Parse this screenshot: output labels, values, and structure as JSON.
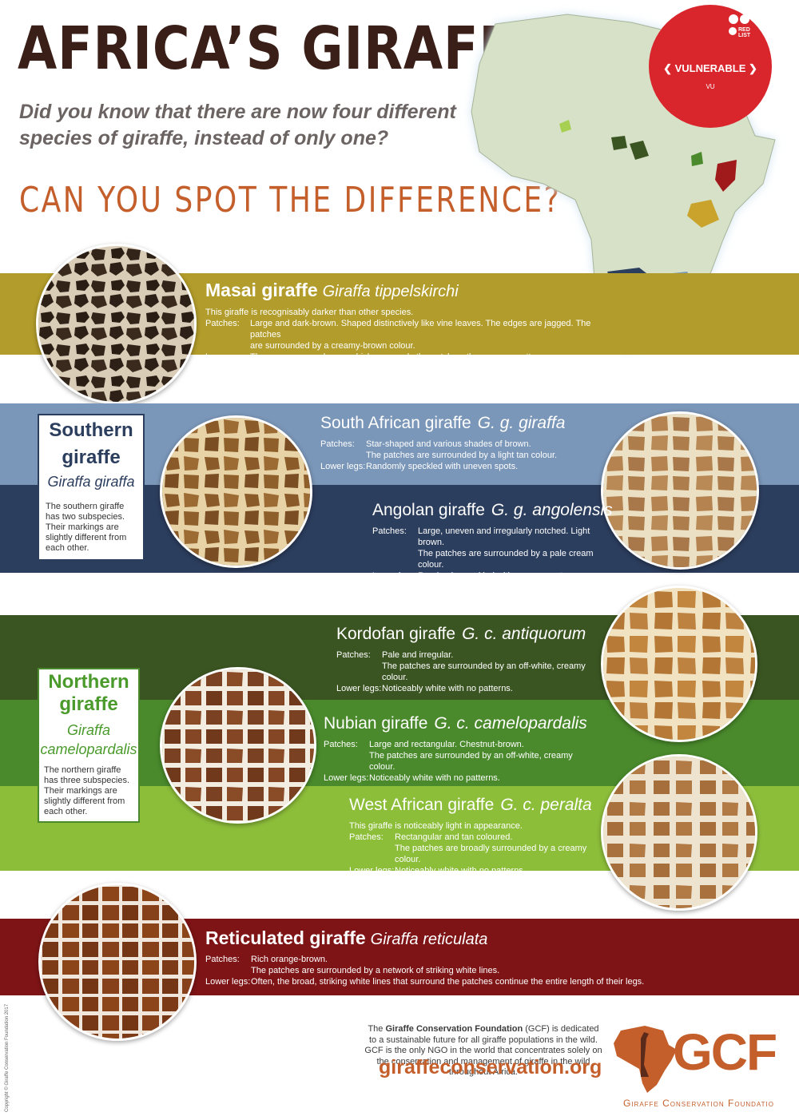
{
  "header": {
    "title": "AFRICA’S GIRAFFE",
    "subtitle": "Did you know that there are now four different species of giraffe, instead of only one?",
    "cta": "CAN YOU SPOT THE DIFFERENCE?"
  },
  "redlist": {
    "logo": "RED LIST",
    "status": "VULNERABLE",
    "code": "VU",
    "color": "#d8262c"
  },
  "masai": {
    "name": "Masai giraffe",
    "sci": "Giraffa tippelskirchi",
    "intro": "This giraffe is recognisably darker than other species.",
    "patches_label": "Patches:",
    "patches_1": "Large and dark-brown. Shaped distinctively like vine leaves. The edges are jagged. The patches",
    "patches_2": "are surrounded by a creamy-brown colour.",
    "legs_label": "Lower legs:",
    "legs": "The same creamy-brown which surrounds the patches, there are no patterns.",
    "color": "#b29c2b"
  },
  "southern": {
    "box_title": "Southern giraffe",
    "box_sci": "Giraffa giraffa",
    "box_desc": "The southern giraffe has two subspecies. Their markings are slightly different from each other.",
    "south_african": {
      "name": "South African giraffe",
      "sci": "G. g. giraffa",
      "patches_label": "Patches:",
      "patches_1": "Star-shaped and various shades of brown.",
      "patches_2": "The patches are surrounded by a light tan colour.",
      "legs_label": "Lower legs:",
      "legs": "Randomly speckled with uneven spots.",
      "color": "#7a96b8"
    },
    "angolan": {
      "name": "Angolan giraffe",
      "sci": "G. g. angolensis",
      "patches_label": "Patches:",
      "patches_1": "Large, uneven and irregularly notched. Light brown.",
      "patches_2": "The patches are surrounded by a pale cream colour.",
      "legs_label": "Lower legs:",
      "legs": "Randomly speckled with uneven spots.",
      "color": "#2c3e5e"
    }
  },
  "northern": {
    "box_title": "Northern giraffe",
    "box_sci": "Giraffa camelopardalis",
    "box_desc": "The northern giraffe has three subspecies. Their markings are slightly different from each other.",
    "kordofan": {
      "name": "Kordofan giraffe",
      "sci": "G. c. antiquorum",
      "patches_label": "Patches:",
      "patches_1": "Pale and irregular.",
      "patches_2": "The patches are surrounded by an off-white, creamy colour.",
      "legs_label": "Lower legs:",
      "legs": "Noticeably white with no patterns.",
      "color": "#3b5522"
    },
    "nubian": {
      "name": "Nubian giraffe",
      "sci": "G. c. camelopardalis",
      "patches_label": "Patches:",
      "patches_1": "Large and rectangular. Chestnut-brown.",
      "patches_2": "The patches are surrounded by an off-white, creamy colour.",
      "legs_label": "Lower legs:",
      "legs": "Noticeably white with no patterns.",
      "color": "#4a8a2c"
    },
    "west_african": {
      "name": "West African giraffe",
      "sci": "G. c. peralta",
      "intro": "This giraffe is noticeably light in appearance.",
      "patches_label": "Patches:",
      "patches_1": "Rectangular and tan coloured.",
      "patches_2": "The patches are broadly surrounded by a creamy colour.",
      "legs_label": "Lower legs:",
      "legs": "Noticeably white with no patterns.",
      "color": "#8dbe3a"
    }
  },
  "reticulated": {
    "name": "Reticulated giraffe",
    "sci": "Giraffa reticulata",
    "patches_label": "Patches:",
    "patches_1": "Rich orange-brown.",
    "patches_2": "The patches are surrounded by a network of striking white lines.",
    "legs_label": "Lower legs:",
    "legs": "Often, the broad, striking white lines that surround the patches continue the entire length of their legs.",
    "color": "#7e1416"
  },
  "footer": {
    "text_pre": "The ",
    "text_bold": "Giraffe Conservation Foundation",
    "text_post": " (GCF) is dedicated to a sustainable future for all giraffe populations in the wild. GCF is the only NGO in the world that concentrates solely on the conservation and management of giraffe in the wild throughout Africa.",
    "website": "giraffeconservation.org",
    "logo": "GCF",
    "org_name": "Giraffe Conservation Foundatio",
    "copyright": "Copyright © Giraffe Conservation Foundation 2017",
    "brand_color": "#c45f2c"
  }
}
